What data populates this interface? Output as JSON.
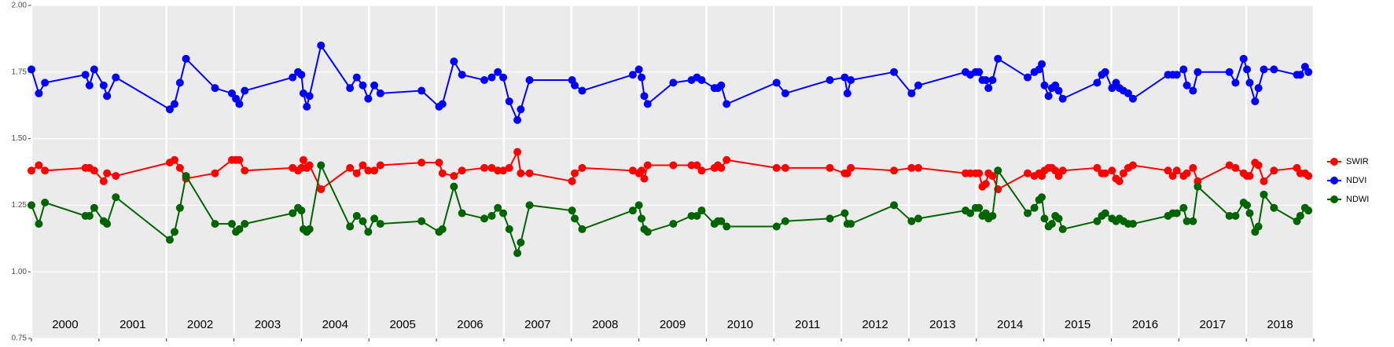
{
  "chart_data": {
    "type": "line",
    "x": [
      2000.0,
      2000.11,
      2000.2,
      2000.8,
      2000.86,
      2000.93,
      2001.07,
      2001.12,
      2001.25,
      2002.05,
      2002.12,
      2002.2,
      2002.29,
      2002.72,
      2002.97,
      2003.03,
      2003.08,
      2003.16,
      2003.87,
      2003.95,
      2004.0,
      2004.03,
      2004.08,
      2004.12,
      2004.29,
      2004.72,
      2004.82,
      2004.91,
      2004.99,
      2005.08,
      2005.17,
      2005.78,
      2006.04,
      2006.09,
      2006.26,
      2006.38,
      2006.71,
      2006.82,
      2006.91,
      2006.99,
      2007.08,
      2007.2,
      2007.25,
      2007.38,
      2008.01,
      2008.05,
      2008.16,
      2008.91,
      2009.0,
      2009.04,
      2009.08,
      2009.13,
      2009.51,
      2009.78,
      2009.86,
      2009.93,
      2010.12,
      2010.17,
      2010.22,
      2010.3,
      2011.04,
      2011.17,
      2011.83,
      2012.05,
      2012.09,
      2012.14,
      2012.78,
      2013.04,
      2013.14,
      2013.84,
      2013.91,
      2013.99,
      2014.04,
      2014.09,
      2014.14,
      2014.18,
      2014.24,
      2014.32,
      2014.76,
      2014.86,
      2014.93,
      2014.97,
      2015.01,
      2015.07,
      2015.12,
      2015.17,
      2015.22,
      2015.28,
      2015.79,
      2015.86,
      2015.91,
      2016.01,
      2016.07,
      2016.12,
      2016.18,
      2016.25,
      2016.32,
      2016.84,
      2016.91,
      2016.97,
      2017.07,
      2017.12,
      2017.21,
      2017.28,
      2017.75,
      2017.84,
      2017.96,
      2018.01,
      2018.05,
      2018.13,
      2018.18,
      2018.26,
      2018.41,
      2018.75,
      2018.8,
      2018.87,
      2018.92
    ],
    "series": [
      {
        "name": "SWIR",
        "color": "#ff0000",
        "values": [
          1.38,
          1.4,
          1.38,
          1.39,
          1.39,
          1.38,
          1.34,
          1.37,
          1.36,
          1.41,
          1.42,
          1.39,
          1.35,
          1.37,
          1.42,
          1.42,
          1.42,
          1.38,
          1.39,
          1.38,
          1.39,
          1.42,
          1.39,
          1.4,
          1.31,
          1.39,
          1.37,
          1.4,
          1.38,
          1.38,
          1.4,
          1.41,
          1.41,
          1.37,
          1.36,
          1.38,
          1.39,
          1.39,
          1.38,
          1.38,
          1.39,
          1.45,
          1.37,
          1.37,
          1.34,
          1.37,
          1.39,
          1.38,
          1.37,
          1.38,
          1.35,
          1.4,
          1.4,
          1.4,
          1.4,
          1.38,
          1.39,
          1.4,
          1.39,
          1.42,
          1.39,
          1.39,
          1.39,
          1.37,
          1.37,
          1.39,
          1.38,
          1.39,
          1.39,
          1.37,
          1.37,
          1.37,
          1.37,
          1.32,
          1.33,
          1.37,
          1.36,
          1.31,
          1.37,
          1.36,
          1.37,
          1.36,
          1.38,
          1.39,
          1.39,
          1.38,
          1.36,
          1.38,
          1.39,
          1.37,
          1.37,
          1.38,
          1.35,
          1.34,
          1.37,
          1.39,
          1.4,
          1.38,
          1.36,
          1.38,
          1.36,
          1.37,
          1.39,
          1.34,
          1.4,
          1.39,
          1.37,
          1.36,
          1.36,
          1.41,
          1.4,
          1.34,
          1.38,
          1.39,
          1.37,
          1.37,
          1.36
        ]
      },
      {
        "name": "NDVI",
        "color": "#0000ff",
        "values": [
          1.76,
          1.67,
          1.71,
          1.74,
          1.7,
          1.76,
          1.7,
          1.66,
          1.73,
          1.61,
          1.63,
          1.71,
          1.8,
          1.69,
          1.67,
          1.65,
          1.63,
          1.68,
          1.73,
          1.75,
          1.74,
          1.67,
          1.62,
          1.66,
          1.85,
          1.69,
          1.73,
          1.7,
          1.65,
          1.7,
          1.67,
          1.68,
          1.62,
          1.63,
          1.79,
          1.74,
          1.72,
          1.73,
          1.75,
          1.73,
          1.64,
          1.57,
          1.61,
          1.72,
          1.72,
          1.7,
          1.68,
          1.74,
          1.76,
          1.73,
          1.66,
          1.63,
          1.71,
          1.72,
          1.73,
          1.72,
          1.69,
          1.69,
          1.7,
          1.63,
          1.71,
          1.67,
          1.72,
          1.73,
          1.67,
          1.72,
          1.75,
          1.67,
          1.7,
          1.75,
          1.74,
          1.75,
          1.75,
          1.72,
          1.72,
          1.69,
          1.72,
          1.8,
          1.73,
          1.75,
          1.76,
          1.78,
          1.7,
          1.66,
          1.69,
          1.7,
          1.68,
          1.65,
          1.71,
          1.74,
          1.75,
          1.69,
          1.71,
          1.69,
          1.68,
          1.67,
          1.65,
          1.74,
          1.74,
          1.74,
          1.76,
          1.7,
          1.68,
          1.75,
          1.75,
          1.71,
          1.8,
          1.76,
          1.71,
          1.64,
          1.69,
          1.76,
          1.76,
          1.74,
          1.74,
          1.77,
          1.75
        ]
      },
      {
        "name": "NDWI",
        "color": "#006400",
        "values": [
          1.25,
          1.18,
          1.26,
          1.21,
          1.21,
          1.24,
          1.19,
          1.18,
          1.28,
          1.12,
          1.15,
          1.24,
          1.36,
          1.18,
          1.18,
          1.15,
          1.16,
          1.18,
          1.22,
          1.24,
          1.23,
          1.16,
          1.15,
          1.16,
          1.4,
          1.17,
          1.21,
          1.19,
          1.15,
          1.2,
          1.18,
          1.19,
          1.15,
          1.16,
          1.32,
          1.22,
          1.2,
          1.21,
          1.24,
          1.22,
          1.16,
          1.07,
          1.11,
          1.25,
          1.23,
          1.2,
          1.16,
          1.23,
          1.25,
          1.2,
          1.16,
          1.15,
          1.18,
          1.21,
          1.21,
          1.23,
          1.18,
          1.19,
          1.19,
          1.17,
          1.17,
          1.19,
          1.2,
          1.22,
          1.18,
          1.18,
          1.25,
          1.19,
          1.2,
          1.23,
          1.22,
          1.24,
          1.24,
          1.21,
          1.22,
          1.2,
          1.21,
          1.38,
          1.22,
          1.24,
          1.27,
          1.28,
          1.2,
          1.17,
          1.18,
          1.21,
          1.2,
          1.16,
          1.19,
          1.21,
          1.22,
          1.2,
          1.19,
          1.2,
          1.19,
          1.18,
          1.18,
          1.21,
          1.22,
          1.22,
          1.24,
          1.19,
          1.19,
          1.32,
          1.21,
          1.21,
          1.26,
          1.25,
          1.22,
          1.15,
          1.17,
          1.29,
          1.24,
          1.19,
          1.21,
          1.24,
          1.23
        ]
      }
    ],
    "xlim": [
      2000,
      2019
    ],
    "year_boundaries": [
      2000,
      2001,
      2002,
      2003,
      2004,
      2005,
      2006,
      2007,
      2008,
      2009,
      2010,
      2011,
      2012,
      2013,
      2014,
      2015,
      2016,
      2017,
      2018,
      2019
    ],
    "xticks": [
      {
        "value": 2000.5,
        "label": "2000"
      },
      {
        "value": 2001.5,
        "label": "2001"
      },
      {
        "value": 2002.5,
        "label": "2002"
      },
      {
        "value": 2003.5,
        "label": "2003"
      },
      {
        "value": 2004.5,
        "label": "2004"
      },
      {
        "value": 2005.5,
        "label": "2005"
      },
      {
        "value": 2006.5,
        "label": "2006"
      },
      {
        "value": 2007.5,
        "label": "2007"
      },
      {
        "value": 2008.5,
        "label": "2008"
      },
      {
        "value": 2009.5,
        "label": "2009"
      },
      {
        "value": 2010.5,
        "label": "2010"
      },
      {
        "value": 2011.5,
        "label": "2011"
      },
      {
        "value": 2012.5,
        "label": "2012"
      },
      {
        "value": 2013.5,
        "label": "2013"
      },
      {
        "value": 2014.5,
        "label": "2014"
      },
      {
        "value": 2015.5,
        "label": "2015"
      },
      {
        "value": 2016.5,
        "label": "2016"
      },
      {
        "value": 2017.5,
        "label": "2017"
      },
      {
        "value": 2018.5,
        "label": "2018"
      }
    ],
    "ylim": [
      0.75,
      2.0
    ],
    "yticks": [
      0.75,
      {
        "value": 1,
        "label": "1.00"
      },
      1.25,
      {
        "value": 1.5,
        "label": "1.50"
      },
      1.75,
      {
        "value": 2,
        "label": "2.00"
      }
    ],
    "grid": true,
    "legend": "right"
  }
}
